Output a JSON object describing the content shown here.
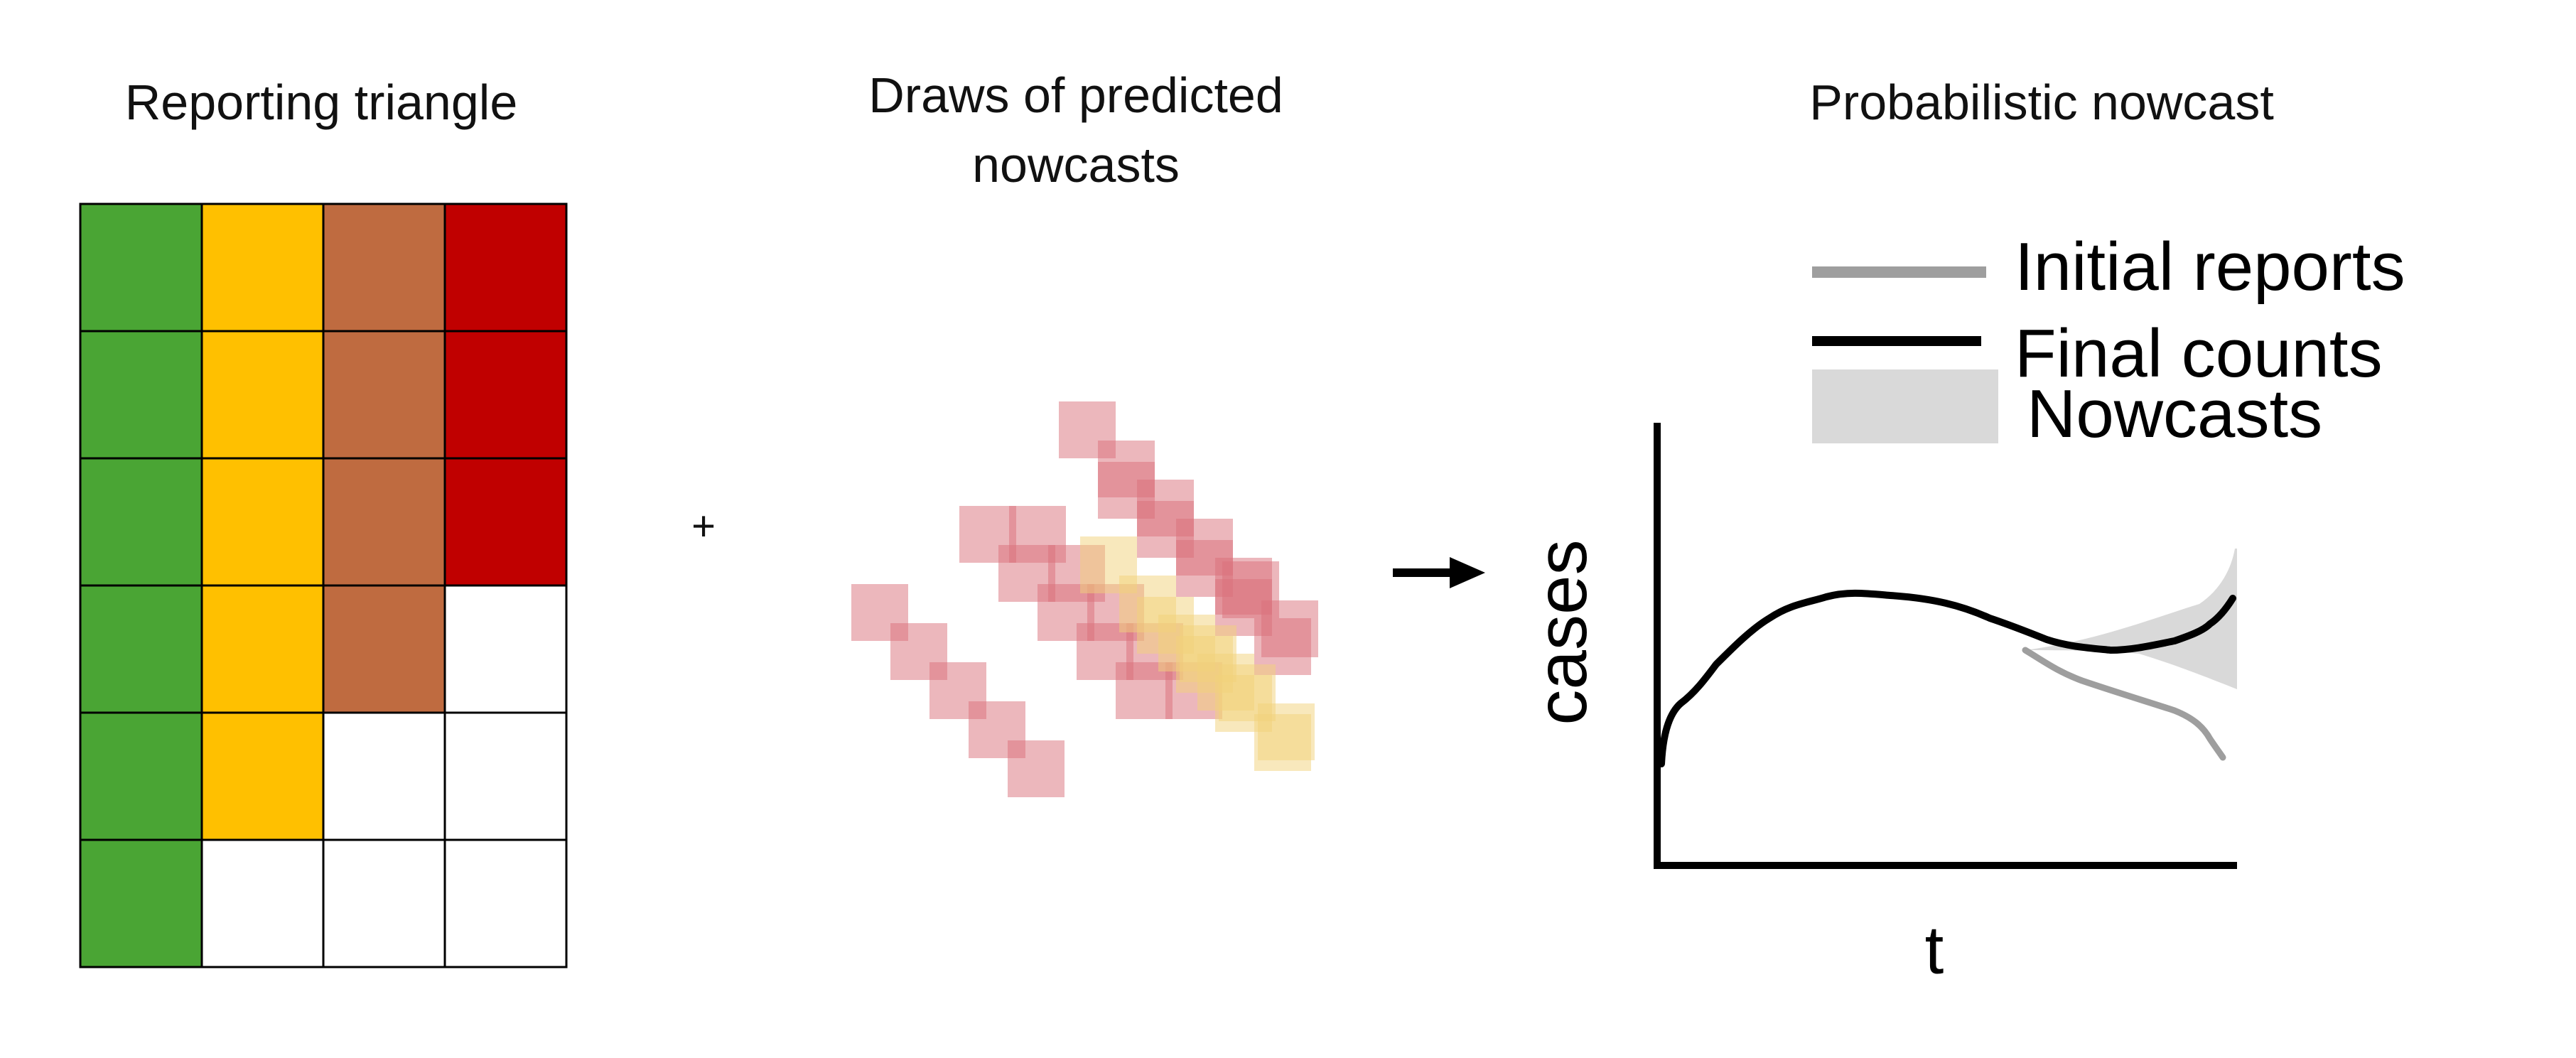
{
  "panels": {
    "reporting_triangle": {
      "title": "Reporting triangle",
      "column_colors": [
        "#4aa534",
        "#ffc000",
        "#bf6b40",
        "#c00000"
      ],
      "row_fill_counts": [
        4,
        4,
        4,
        3,
        2,
        1
      ]
    },
    "draws": {
      "title_line1": "Draws of predicted",
      "title_line2": "nowcasts",
      "plus": "+",
      "tile_colors": {
        "red": "#d9707a",
        "yellow": "#f2d27a"
      }
    },
    "nowcast": {
      "title": "Probabilistic nowcast",
      "arrow": "arrow-right-icon",
      "ylabel": "cases",
      "xlabel": "t",
      "legend": {
        "initial": "Initial reports",
        "final": "Final counts",
        "nowcasts": "Nowcasts"
      },
      "colors": {
        "initial": "#9e9e9e",
        "final": "#000000",
        "band": "#d9d9d9"
      }
    }
  }
}
